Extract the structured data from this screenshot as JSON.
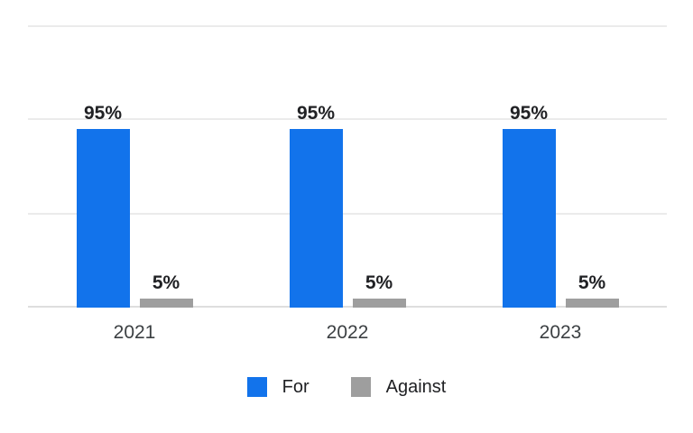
{
  "chart_data": {
    "type": "bar",
    "categories": [
      "2021",
      "2022",
      "2023"
    ],
    "series": [
      {
        "name": "For",
        "color": "#1273eb",
        "values": [
          95,
          95,
          95
        ],
        "labels": [
          "95%",
          "95%",
          "95%"
        ]
      },
      {
        "name": "Against",
        "color": "#9e9e9e",
        "values": [
          5,
          5,
          5
        ],
        "labels": [
          "5%",
          "5%",
          "5%"
        ]
      }
    ],
    "ylim": [
      0,
      150
    ],
    "gridline_values": [
      0,
      50,
      100,
      150
    ],
    "grid": true,
    "y_axis_labels_visible": false,
    "legend_position": "bottom",
    "legend": {
      "items": [
        {
          "label": "For",
          "color": "#1273eb"
        },
        {
          "label": "Against",
          "color": "#9e9e9e"
        }
      ]
    }
  },
  "colors": {
    "background": "#ffffff",
    "gridline": "#ebebeb",
    "baseline": "#dedede",
    "value_label": "#202124",
    "axis_label": "#3c4043",
    "legend_label": "#202124"
  }
}
